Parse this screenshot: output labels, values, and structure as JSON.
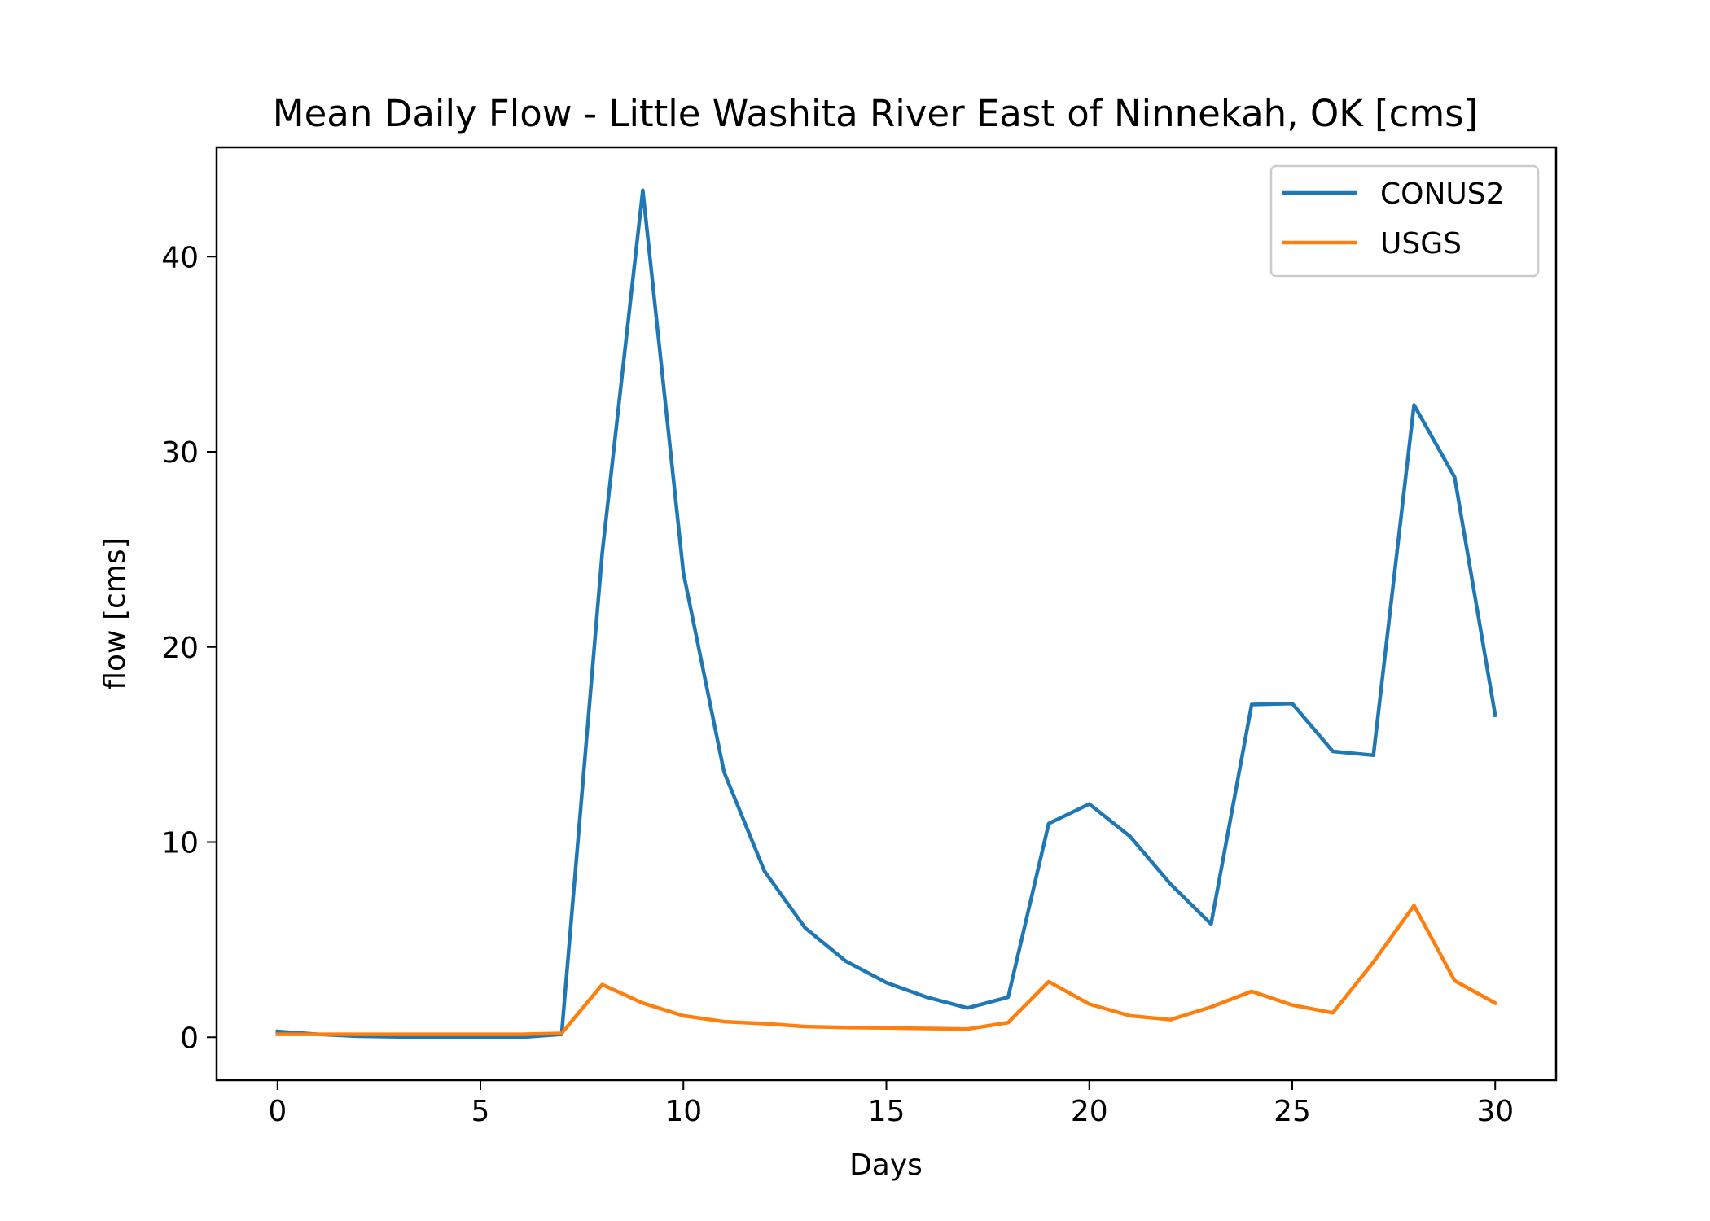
{
  "chart_data": {
    "type": "line",
    "title": "Mean Daily Flow - Little Washita River East of Ninnekah, OK [cms]",
    "xlabel": "Days",
    "ylabel": "flow [cms]",
    "xlim": [
      -1.5,
      31.5
    ],
    "ylim": [
      -2.2,
      45.6
    ],
    "xticks": [
      0,
      5,
      10,
      15,
      20,
      25,
      30
    ],
    "yticks": [
      0,
      10,
      20,
      30,
      40
    ],
    "grid": false,
    "legend_position": "top-right",
    "x": [
      0,
      1,
      2,
      3,
      4,
      5,
      6,
      7,
      8,
      9,
      10,
      11,
      12,
      13,
      14,
      15,
      16,
      17,
      18,
      19,
      20,
      21,
      22,
      23,
      24,
      25,
      26,
      27,
      28,
      29,
      30
    ],
    "series": [
      {
        "name": "CONUS2",
        "color": "#1f77b4",
        "values": [
          0.3,
          0.15,
          0.05,
          0.02,
          0.0,
          0.0,
          0.0,
          0.15,
          24.8,
          43.4,
          23.8,
          13.6,
          8.5,
          5.6,
          3.9,
          2.8,
          2.05,
          1.5,
          2.05,
          10.95,
          11.95,
          10.3,
          7.85,
          5.8,
          17.05,
          17.1,
          14.65,
          14.45,
          32.4,
          28.7,
          16.5
        ]
      },
      {
        "name": "USGS",
        "color": "#ff7f0e",
        "values": [
          0.15,
          0.15,
          0.15,
          0.15,
          0.15,
          0.15,
          0.15,
          0.2,
          2.7,
          1.75,
          1.1,
          0.8,
          0.7,
          0.55,
          0.5,
          0.48,
          0.45,
          0.42,
          0.75,
          2.85,
          1.7,
          1.1,
          0.9,
          1.55,
          2.35,
          1.65,
          1.25,
          3.85,
          6.75,
          2.9,
          1.75
        ]
      }
    ]
  }
}
